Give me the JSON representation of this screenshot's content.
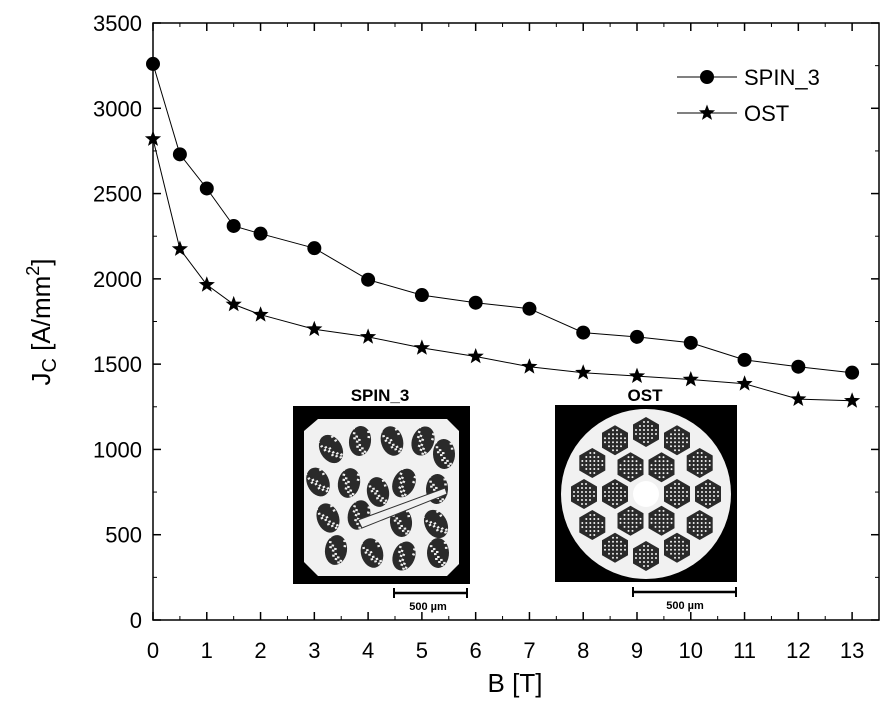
{
  "chart_data": {
    "type": "line",
    "title": "",
    "xlabel": "B [T]",
    "ylabel_main": "J",
    "ylabel_sub": "C",
    "ylabel_rest": " [A/mm",
    "ylabel_sup": "2",
    "ylabel_end": "]",
    "xlim": [
      0,
      13.5
    ],
    "ylim": [
      0,
      3500
    ],
    "xticks": [
      0,
      1,
      2,
      3,
      4,
      5,
      6,
      7,
      8,
      9,
      10,
      11,
      12,
      13
    ],
    "yticks": [
      0,
      500,
      1000,
      1500,
      2000,
      2500,
      3000,
      3500
    ],
    "grid": false,
    "legend_position": "top-right",
    "series": [
      {
        "name": "SPIN_3",
        "marker": "circle",
        "color": "#000000",
        "x": [
          0,
          0.5,
          1,
          1.5,
          2,
          3,
          4,
          5,
          6,
          7,
          8,
          9,
          10,
          11,
          12,
          13
        ],
        "y": [
          3260,
          2730,
          2530,
          2310,
          2265,
          2180,
          1995,
          1905,
          1860,
          1825,
          1685,
          1660,
          1625,
          1525,
          1485,
          1450
        ]
      },
      {
        "name": "OST",
        "marker": "star",
        "color": "#000000",
        "x": [
          0,
          0.5,
          1,
          1.5,
          2,
          3,
          4,
          5,
          6,
          7,
          8,
          9,
          10,
          11,
          12,
          13
        ],
        "y": [
          2820,
          2175,
          1965,
          1850,
          1790,
          1705,
          1660,
          1595,
          1545,
          1485,
          1450,
          1430,
          1410,
          1385,
          1295,
          1285
        ]
      }
    ],
    "insets": [
      {
        "title": "SPIN_3",
        "scale_bar": "500 µm"
      },
      {
        "title": "OST",
        "scale_bar": "500 µm"
      }
    ]
  }
}
